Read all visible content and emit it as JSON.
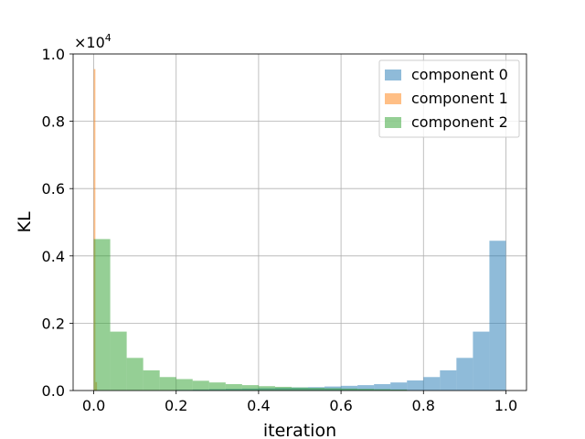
{
  "chart_data": {
    "type": "bar",
    "subtype": "overlaid-histogram",
    "xlabel": "iteration",
    "ylabel": "KL",
    "xlim": [
      -0.05,
      1.05
    ],
    "ylim": [
      0,
      1.0
    ],
    "y_scale_multiplier": "×10",
    "y_scale_exponent": "4",
    "xticks": [
      0.0,
      0.2,
      0.4,
      0.6,
      0.8,
      1.0
    ],
    "xtick_labels": [
      "0.0",
      "0.2",
      "0.4",
      "0.6",
      "0.8",
      "1.0"
    ],
    "yticks": [
      0.0,
      0.2,
      0.4,
      0.6,
      0.8,
      1.0
    ],
    "ytick_labels": [
      "0.0",
      "0.2",
      "0.4",
      "0.6",
      "0.8",
      "1.0"
    ],
    "grid": true,
    "legend_position": "top-right",
    "series": [
      {
        "name": "component 0",
        "color": "#1f77b4",
        "alpha": 0.5,
        "bin_start": 0.2,
        "bin_width": 0.04,
        "values": [
          0.002,
          0.003,
          0.004,
          0.005,
          0.006,
          0.007,
          0.008,
          0.009,
          0.01,
          0.012,
          0.014,
          0.016,
          0.019,
          0.024,
          0.03,
          0.04,
          0.06,
          0.097,
          0.175,
          0.445
        ]
      },
      {
        "name": "component 1",
        "color": "#ff7f0e",
        "alpha": 0.5,
        "bin_start": 0.0,
        "bin_width": 0.004,
        "values": [
          0.955,
          0.025
        ]
      },
      {
        "name": "component 2",
        "color": "#2ca02c",
        "alpha": 0.5,
        "bin_start": 0.0,
        "bin_width": 0.04,
        "values": [
          0.45,
          0.175,
          0.097,
          0.06,
          0.04,
          0.034,
          0.029,
          0.024,
          0.019,
          0.016,
          0.013,
          0.011,
          0.009,
          0.008,
          0.007,
          0.006,
          0.005,
          0.004,
          0.003
        ]
      }
    ]
  }
}
